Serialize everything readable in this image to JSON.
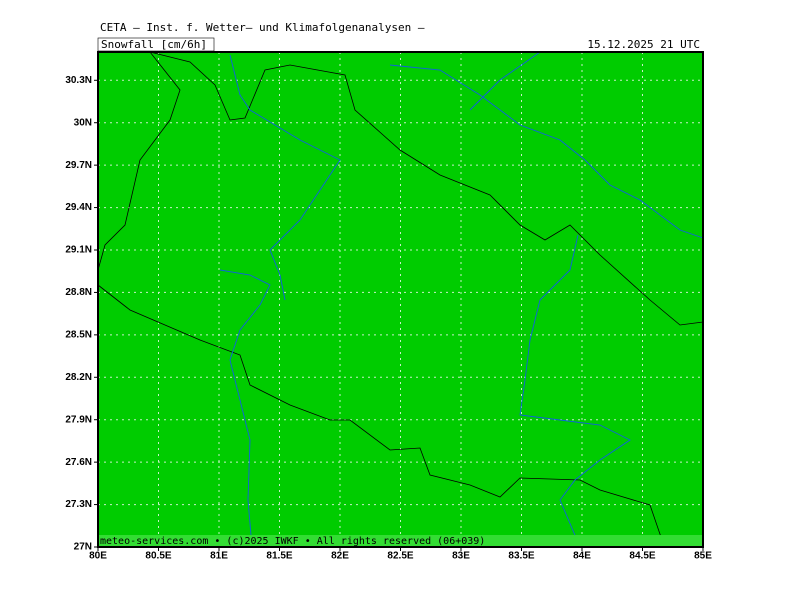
{
  "header": {
    "title": "CETA — Inst. f. Wetter— und Klimafolgenanalysen —",
    "field": "Snowfall [cm/6h]",
    "valid_time": "15.12.2025 21 UTC"
  },
  "map": {
    "fill_color": "#00cc00",
    "grid": true,
    "xlim": [
      80,
      85
    ],
    "ylim": [
      27,
      30.5
    ],
    "xticks": [
      {
        "value": 80,
        "label": "80E"
      },
      {
        "value": 80.5,
        "label": "80.5E"
      },
      {
        "value": 81,
        "label": "81E"
      },
      {
        "value": 81.5,
        "label": "81.5E"
      },
      {
        "value": 82,
        "label": "82E"
      },
      {
        "value": 82.5,
        "label": "82.5E"
      },
      {
        "value": 83,
        "label": "83E"
      },
      {
        "value": 83.5,
        "label": "83.5E"
      },
      {
        "value": 84,
        "label": "84E"
      },
      {
        "value": 84.5,
        "label": "84.5E"
      },
      {
        "value": 85,
        "label": "85E"
      }
    ],
    "yticks": [
      {
        "value": 27,
        "label": "27N"
      },
      {
        "value": 27.3,
        "label": "27.3N"
      },
      {
        "value": 27.6,
        "label": "27.6N"
      },
      {
        "value": 27.9,
        "label": "27.9N"
      },
      {
        "value": 28.2,
        "label": "28.2N"
      },
      {
        "value": 28.5,
        "label": "28.5N"
      },
      {
        "value": 28.8,
        "label": "28.8N"
      },
      {
        "value": 29.1,
        "label": "29.1N"
      },
      {
        "value": 29.4,
        "label": "29.4N"
      },
      {
        "value": 29.7,
        "label": "29.7N"
      },
      {
        "value": 30,
        "label": "30N"
      },
      {
        "value": 30.3,
        "label": "30.3N"
      }
    ]
  },
  "footer": "meteo-services.com • (c)2025 IWKF • All rights reserved (06+039)"
}
